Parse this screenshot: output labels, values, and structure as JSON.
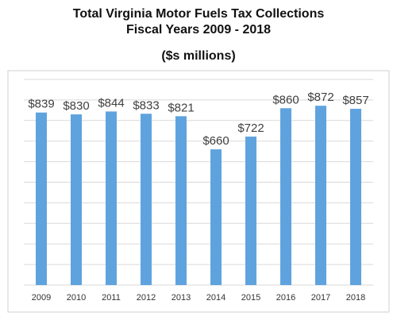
{
  "chart_data": {
    "type": "bar",
    "title": [
      "Total Virginia Motor Fuels Tax Collections",
      "Fiscal Years 2009 - 2018"
    ],
    "subtitle": "($s millions)",
    "categories": [
      "2009",
      "2010",
      "2011",
      "2012",
      "2013",
      "2014",
      "2015",
      "2016",
      "2017",
      "2018"
    ],
    "values": [
      839,
      830,
      844,
      833,
      821,
      660,
      722,
      860,
      872,
      857
    ],
    "data_labels": [
      "$839",
      "$830",
      "$844",
      "$833",
      "$821",
      "$660",
      "$722",
      "$860",
      "$872",
      "$857"
    ],
    "ylim": [
      0,
      1000
    ],
    "grid": true,
    "bar_color": "#5fa3de",
    "xlabel": "",
    "ylabel": ""
  }
}
